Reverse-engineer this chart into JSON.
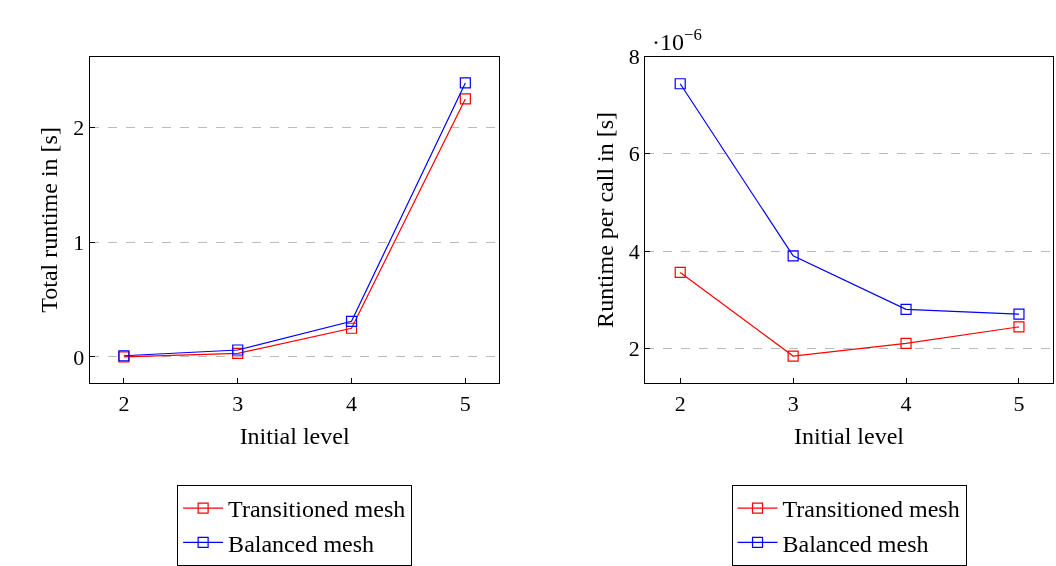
{
  "chart_data": [
    {
      "type": "line",
      "xlabel": "Initial level",
      "ylabel": "Total runtime in [s]",
      "x": [
        2,
        3,
        4,
        5
      ],
      "xlim": [
        1.7,
        5.3
      ],
      "xticks": [
        2,
        3,
        4,
        5
      ],
      "ylim": [
        -0.23,
        2.62
      ],
      "yticks": [
        0,
        1,
        2
      ],
      "grid": "y",
      "legend": "bottom",
      "marker": "square",
      "line_style": "solid",
      "series": [
        {
          "name": "Transitioned mesh",
          "color": "#ff0000",
          "values": [
            0.0,
            0.03,
            0.25,
            2.25
          ]
        },
        {
          "name": "Balanced mesh",
          "color": "#0000ff",
          "values": [
            0.01,
            0.06,
            0.31,
            2.39
          ]
        }
      ]
    },
    {
      "type": "line",
      "xlabel": "Initial level",
      "ylabel": "Runtime per call in [s]",
      "x": [
        2,
        3,
        4,
        5
      ],
      "xlim": [
        1.69,
        5.3
      ],
      "xticks": [
        2,
        3,
        4,
        5
      ],
      "ylim": [
        1.28,
        8
      ],
      "yticks": [
        2,
        4,
        6,
        8
      ],
      "grid": "y",
      "legend": "bottom",
      "marker": "square",
      "line_style": "solid",
      "annotations": [
        "·10$^{−6}$"
      ],
      "series": [
        {
          "name": "Transitioned mesh",
          "color": "#ff0000",
          "values": [
            3.56,
            1.84,
            2.1,
            2.44
          ]
        },
        {
          "name": "Balanced mesh",
          "color": "#0000ff",
          "values": [
            7.44,
            3.9,
            2.8,
            2.7
          ]
        }
      ]
    }
  ]
}
